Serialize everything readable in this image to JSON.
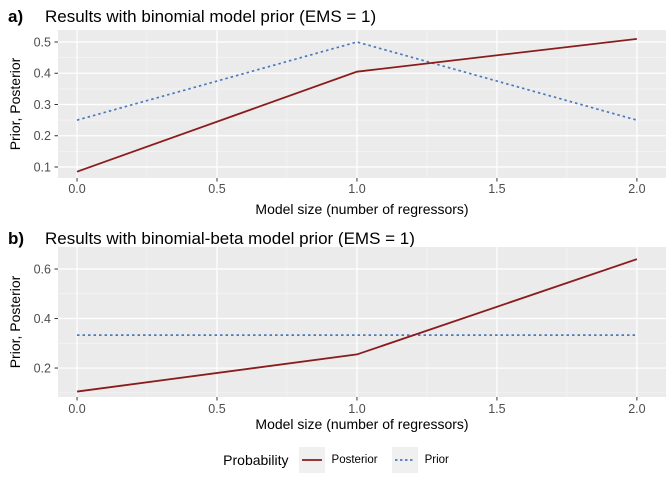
{
  "figure": {
    "background": "#FFFFFF",
    "panel_bg": "#EBEBEB",
    "grid_major_color": "#FFFFFF",
    "grid_minor_color": "#F5F5F5",
    "tick_color": "#333333",
    "tick_label_color": "#4D4D4D",
    "axis_label_color": "#000000",
    "legend_key_bg": "#F0F0F0"
  },
  "legend": {
    "title": "Probability",
    "items": [
      {
        "label": "Posterior",
        "color": "#8B1C1C",
        "style": "solid"
      },
      {
        "label": "Prior",
        "color": "#4B78BE",
        "style": "dotted"
      }
    ]
  },
  "chart_data": [
    {
      "type": "line",
      "tag": "a)",
      "title": "Results with binomial model prior (EMS = 1)",
      "xlabel": "Model size (number of regressors)",
      "ylabel": "Prior, Posterior",
      "x": [
        0,
        1,
        2
      ],
      "series": [
        {
          "name": "Posterior",
          "values": [
            0.085,
            0.405,
            0.51
          ],
          "color": "#8B1C1C",
          "style": "solid"
        },
        {
          "name": "Prior",
          "values": [
            0.25,
            0.5,
            0.25
          ],
          "color": "#4B78BE",
          "style": "dotted"
        }
      ],
      "xticks": [
        0.0,
        0.5,
        1.0,
        1.5,
        2.0
      ],
      "yticks": [
        0.1,
        0.2,
        0.3,
        0.4,
        0.5
      ],
      "xlim": [
        -0.068,
        2.104
      ],
      "ylim": [
        0.0648,
        0.5384
      ],
      "grid": true,
      "legend_position": "bottom"
    },
    {
      "type": "line",
      "tag": "b)",
      "title": "Results with binomial-beta model prior (EMS = 1)",
      "xlabel": "Model size (number of regressors)",
      "ylabel": "Prior, Posterior",
      "x": [
        0,
        1,
        2
      ],
      "series": [
        {
          "name": "Posterior",
          "values": [
            0.105,
            0.255,
            0.64
          ],
          "color": "#8B1C1C",
          "style": "solid"
        },
        {
          "name": "Prior",
          "values": [
            0.333,
            0.333,
            0.333
          ],
          "color": "#4B78BE",
          "style": "dotted"
        }
      ],
      "xticks": [
        0.0,
        0.5,
        1.0,
        1.5,
        2.0
      ],
      "yticks": [
        0.2,
        0.4,
        0.6
      ],
      "xlim": [
        -0.068,
        2.104
      ],
      "ylim": [
        0.083,
        0.689
      ],
      "grid": true,
      "legend_position": "bottom"
    }
  ]
}
